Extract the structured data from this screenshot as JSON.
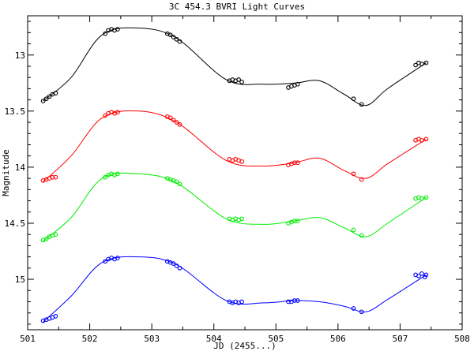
{
  "chart_data": {
    "type": "scatter",
    "title": "3C 454.3 BVRI Light Curves",
    "xlabel": "JD (2455...)",
    "ylabel": "Magnitude",
    "xlim": [
      501,
      508
    ],
    "ylim": [
      12.65,
      15.45
    ],
    "y_inverted": true,
    "x_ticks": [
      501,
      502,
      503,
      504,
      505,
      506,
      507,
      508
    ],
    "y_ticks": [
      13,
      13.5,
      14,
      14.5,
      15
    ],
    "grid": false,
    "series": [
      {
        "color": "#000000",
        "points": [
          [
            501.25,
            13.41
          ],
          [
            501.3,
            13.39
          ],
          [
            501.35,
            13.37
          ],
          [
            501.4,
            13.35
          ],
          [
            501.45,
            13.34
          ],
          [
            502.25,
            12.81
          ],
          [
            502.3,
            12.78
          ],
          [
            502.35,
            12.77
          ],
          [
            502.4,
            12.78
          ],
          [
            502.45,
            12.77
          ],
          [
            503.25,
            12.81
          ],
          [
            503.3,
            12.82
          ],
          [
            503.35,
            12.84
          ],
          [
            503.4,
            12.86
          ],
          [
            503.45,
            12.88
          ],
          [
            504.25,
            13.23
          ],
          [
            504.3,
            13.22
          ],
          [
            504.35,
            13.23
          ],
          [
            504.4,
            13.22
          ],
          [
            504.45,
            13.24
          ],
          [
            505.2,
            13.29
          ],
          [
            505.25,
            13.28
          ],
          [
            505.3,
            13.27
          ],
          [
            505.35,
            13.26
          ],
          [
            506.25,
            13.39
          ],
          [
            506.38,
            13.44
          ],
          [
            507.25,
            13.09
          ],
          [
            507.3,
            13.07
          ],
          [
            507.35,
            13.08
          ],
          [
            507.42,
            13.07
          ]
        ],
        "curve": [
          [
            501.25,
            13.41
          ],
          [
            501.7,
            13.2
          ],
          [
            502.2,
            12.82
          ],
          [
            502.8,
            12.76
          ],
          [
            503.4,
            12.85
          ],
          [
            504.2,
            13.22
          ],
          [
            504.8,
            13.26
          ],
          [
            505.3,
            13.25
          ],
          [
            505.7,
            13.23
          ],
          [
            506.1,
            13.35
          ],
          [
            506.45,
            13.45
          ],
          [
            506.8,
            13.3
          ],
          [
            507.42,
            13.07
          ]
        ]
      },
      {
        "color": "#ff0000",
        "points": [
          [
            501.25,
            14.12
          ],
          [
            501.3,
            14.11
          ],
          [
            501.35,
            14.1
          ],
          [
            501.4,
            14.09
          ],
          [
            501.45,
            14.09
          ],
          [
            502.25,
            13.54
          ],
          [
            502.3,
            13.52
          ],
          [
            502.35,
            13.51
          ],
          [
            502.4,
            13.52
          ],
          [
            502.45,
            13.51
          ],
          [
            503.25,
            13.55
          ],
          [
            503.3,
            13.56
          ],
          [
            503.35,
            13.58
          ],
          [
            503.4,
            13.6
          ],
          [
            503.45,
            13.62
          ],
          [
            504.25,
            13.93
          ],
          [
            504.3,
            13.94
          ],
          [
            504.35,
            13.93
          ],
          [
            504.4,
            13.94
          ],
          [
            504.45,
            13.95
          ],
          [
            505.2,
            13.98
          ],
          [
            505.25,
            13.97
          ],
          [
            505.3,
            13.96
          ],
          [
            505.35,
            13.96
          ],
          [
            506.25,
            14.06
          ],
          [
            506.38,
            14.11
          ],
          [
            507.25,
            13.76
          ],
          [
            507.3,
            13.75
          ],
          [
            507.35,
            13.76
          ],
          [
            507.42,
            13.75
          ]
        ],
        "curve": [
          [
            501.25,
            14.13
          ],
          [
            501.7,
            13.9
          ],
          [
            502.2,
            13.56
          ],
          [
            502.8,
            13.5
          ],
          [
            503.4,
            13.6
          ],
          [
            504.2,
            13.94
          ],
          [
            504.8,
            13.99
          ],
          [
            505.3,
            13.96
          ],
          [
            505.7,
            13.92
          ],
          [
            506.1,
            14.03
          ],
          [
            506.45,
            14.1
          ],
          [
            506.8,
            13.97
          ],
          [
            507.42,
            13.75
          ]
        ]
      },
      {
        "color": "#00ee00",
        "points": [
          [
            501.25,
            14.65
          ],
          [
            501.3,
            14.64
          ],
          [
            501.35,
            14.62
          ],
          [
            501.4,
            14.61
          ],
          [
            501.45,
            14.6
          ],
          [
            502.25,
            14.09
          ],
          [
            502.3,
            14.07
          ],
          [
            502.35,
            14.06
          ],
          [
            502.4,
            14.07
          ],
          [
            502.45,
            14.06
          ],
          [
            503.25,
            14.1
          ],
          [
            503.3,
            14.11
          ],
          [
            503.35,
            14.12
          ],
          [
            503.4,
            14.13
          ],
          [
            503.45,
            14.15
          ],
          [
            504.25,
            14.46
          ],
          [
            504.3,
            14.47
          ],
          [
            504.35,
            14.46
          ],
          [
            504.4,
            14.47
          ],
          [
            504.45,
            14.46
          ],
          [
            505.2,
            14.5
          ],
          [
            505.25,
            14.49
          ],
          [
            505.3,
            14.48
          ],
          [
            505.35,
            14.48
          ],
          [
            506.25,
            14.56
          ],
          [
            506.38,
            14.61
          ],
          [
            507.25,
            14.28
          ],
          [
            507.3,
            14.27
          ],
          [
            507.35,
            14.28
          ],
          [
            507.42,
            14.27
          ]
        ],
        "curve": [
          [
            501.25,
            14.66
          ],
          [
            501.7,
            14.45
          ],
          [
            502.2,
            14.1
          ],
          [
            502.8,
            14.06
          ],
          [
            503.4,
            14.14
          ],
          [
            504.2,
            14.46
          ],
          [
            504.8,
            14.51
          ],
          [
            505.3,
            14.48
          ],
          [
            505.7,
            14.45
          ],
          [
            506.1,
            14.54
          ],
          [
            506.45,
            14.62
          ],
          [
            506.8,
            14.5
          ],
          [
            507.42,
            14.27
          ]
        ]
      },
      {
        "color": "#0000ff",
        "points": [
          [
            501.25,
            15.37
          ],
          [
            501.3,
            15.36
          ],
          [
            501.35,
            15.35
          ],
          [
            501.4,
            15.34
          ],
          [
            501.45,
            15.33
          ],
          [
            502.25,
            14.84
          ],
          [
            502.3,
            14.82
          ],
          [
            502.35,
            14.81
          ],
          [
            502.4,
            14.82
          ],
          [
            502.45,
            14.81
          ],
          [
            503.25,
            14.84
          ],
          [
            503.3,
            14.85
          ],
          [
            503.35,
            14.86
          ],
          [
            503.4,
            14.88
          ],
          [
            503.45,
            14.9
          ],
          [
            504.25,
            15.2
          ],
          [
            504.3,
            15.21
          ],
          [
            504.35,
            15.2
          ],
          [
            504.4,
            15.21
          ],
          [
            504.45,
            15.2
          ],
          [
            505.2,
            15.2
          ],
          [
            505.25,
            15.2
          ],
          [
            505.3,
            15.19
          ],
          [
            505.35,
            15.19
          ],
          [
            506.25,
            15.26
          ],
          [
            506.38,
            15.29
          ],
          [
            507.25,
            14.96
          ],
          [
            507.3,
            14.97
          ],
          [
            507.35,
            14.95
          ],
          [
            507.4,
            14.98
          ],
          [
            507.42,
            14.96
          ]
        ],
        "curve": [
          [
            501.25,
            15.38
          ],
          [
            501.7,
            15.15
          ],
          [
            502.2,
            14.85
          ],
          [
            502.8,
            14.8
          ],
          [
            503.4,
            14.87
          ],
          [
            504.2,
            15.19
          ],
          [
            504.8,
            15.21
          ],
          [
            505.3,
            15.19
          ],
          [
            505.7,
            15.2
          ],
          [
            506.1,
            15.24
          ],
          [
            506.45,
            15.29
          ],
          [
            506.8,
            15.18
          ],
          [
            507.42,
            14.96
          ]
        ]
      }
    ]
  }
}
